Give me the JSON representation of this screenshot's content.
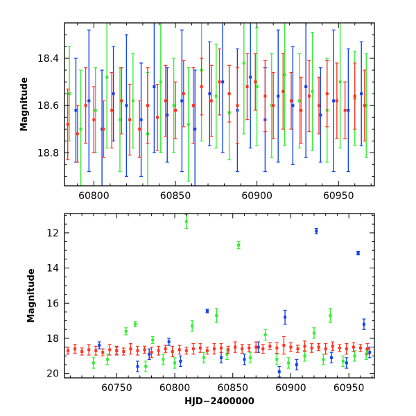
{
  "chart_data": [
    {
      "type": "scatter",
      "panel": "top",
      "title": "",
      "xlabel": "",
      "ylabel": "Magnitude",
      "xlim": [
        60782,
        60972
      ],
      "ylim": [
        18.25,
        18.94
      ],
      "y_inverted": true,
      "xticks": [
        60800,
        60850,
        60900,
        60950
      ],
      "yticks": [
        18.4,
        18.6,
        18.8
      ],
      "xtick_labels": [
        "60800",
        "60850",
        "60900",
        "60950"
      ],
      "ytick_labels": [
        "18.4",
        "18.6",
        "18.8"
      ],
      "series": [
        {
          "name": "green",
          "color": "#33ee33",
          "x": [
            60785,
            60792,
            60801,
            60808,
            60816,
            60824,
            60833,
            60841,
            60849,
            60858,
            60866,
            60875,
            60883,
            60892,
            60900,
            60909,
            60917,
            60926,
            60934,
            60943,
            60951,
            60960,
            60967
          ],
          "y": [
            18.55,
            18.7,
            18.62,
            18.48,
            18.66,
            18.58,
            18.72,
            18.5,
            18.6,
            18.68,
            18.45,
            18.56,
            18.63,
            18.42,
            18.52,
            18.6,
            18.47,
            18.58,
            18.54,
            18.62,
            18.5,
            18.57,
            18.6
          ],
          "err": [
            0.2,
            0.25,
            0.18,
            0.3,
            0.22,
            0.2,
            0.26,
            0.3,
            0.2,
            0.24,
            0.3,
            0.22,
            0.2,
            0.3,
            0.25,
            0.22,
            0.3,
            0.2,
            0.25,
            0.22,
            0.28,
            0.2,
            0.22
          ]
        },
        {
          "name": "blue",
          "color": "#1144ee",
          "x": [
            60789,
            60797,
            60805,
            60812,
            60820,
            60829,
            60837,
            60845,
            60854,
            60862,
            60871,
            60879,
            60888,
            60896,
            60905,
            60913,
            60922,
            60930,
            60939,
            60947,
            60956,
            60964
          ],
          "y": [
            18.62,
            18.58,
            18.7,
            18.55,
            18.6,
            18.66,
            18.52,
            18.64,
            18.58,
            18.7,
            18.55,
            18.5,
            18.62,
            18.48,
            18.66,
            18.56,
            18.6,
            18.52,
            18.64,
            18.58,
            18.62,
            18.55
          ],
          "err": [
            0.22,
            0.3,
            0.25,
            0.2,
            0.3,
            0.24,
            0.28,
            0.2,
            0.3,
            0.25,
            0.22,
            0.3,
            0.26,
            0.3,
            0.22,
            0.28,
            0.25,
            0.3,
            0.2,
            0.3,
            0.26,
            0.22
          ]
        },
        {
          "name": "red",
          "color": "#ff3322",
          "x": [
            60784,
            60790,
            60795,
            60800,
            60806,
            60811,
            60817,
            60822,
            60828,
            60833,
            60839,
            60844,
            60850,
            60855,
            60861,
            60866,
            60872,
            60877,
            60883,
            60888,
            60894,
            60899,
            60905,
            60910,
            60916,
            60921,
            60927,
            60932,
            60938,
            60943,
            60949,
            60954,
            60960,
            60966
          ],
          "y": [
            18.68,
            18.72,
            18.6,
            18.66,
            18.7,
            18.62,
            18.58,
            18.66,
            18.7,
            18.6,
            18.65,
            18.58,
            18.62,
            18.55,
            18.6,
            18.52,
            18.58,
            18.5,
            18.55,
            18.6,
            18.52,
            18.5,
            18.56,
            18.6,
            18.54,
            18.58,
            18.62,
            18.56,
            18.6,
            18.55,
            18.58,
            18.62,
            18.56,
            18.6
          ],
          "err": [
            0.15,
            0.12,
            0.16,
            0.14,
            0.12,
            0.16,
            0.14,
            0.15,
            0.12,
            0.16,
            0.14,
            0.15,
            0.12,
            0.14,
            0.16,
            0.12,
            0.15,
            0.14,
            0.12,
            0.16,
            0.14,
            0.12,
            0.15,
            0.14,
            0.16,
            0.12,
            0.14,
            0.15,
            0.12,
            0.14,
            0.16,
            0.12,
            0.14,
            0.15
          ]
        }
      ]
    },
    {
      "type": "scatter",
      "panel": "bottom",
      "title": "",
      "xlabel": "HJD−2400000",
      "ylabel": "Magnitude",
      "xlim": [
        60705,
        60972
      ],
      "ylim": [
        10.9,
        20.25
      ],
      "y_inverted": true,
      "xticks": [
        60750,
        60800,
        60850,
        60900,
        60950
      ],
      "yticks": [
        12,
        14,
        16,
        18,
        20
      ],
      "xtick_labels": [
        "60750",
        "60800",
        "60850",
        "60900",
        "60950"
      ],
      "ytick_labels": [
        "12",
        "14",
        "16",
        "18",
        "20"
      ],
      "series": [
        {
          "name": "green",
          "color": "#33ee33",
          "x": [
            60730,
            60742,
            60758,
            60766,
            60775,
            60781,
            60790,
            60800,
            60810,
            60815,
            60825,
            60836,
            60845,
            60855,
            60865,
            60878,
            60888,
            60898,
            60912,
            60920,
            60928,
            60934,
            60945,
            60955,
            60965
          ],
          "y": [
            19.4,
            19.2,
            17.6,
            17.2,
            19.6,
            18.1,
            19.2,
            19.4,
            11.35,
            17.3,
            19.1,
            16.7,
            18.9,
            12.7,
            19.1,
            17.8,
            19.2,
            19.4,
            19.0,
            17.7,
            19.2,
            16.7,
            19.3,
            19.0,
            18.9
          ],
          "err": [
            0.3,
            0.3,
            0.2,
            0.15,
            0.3,
            0.2,
            0.3,
            0.3,
            0.4,
            0.3,
            0.3,
            0.4,
            0.3,
            0.2,
            0.3,
            0.3,
            0.3,
            0.3,
            0.3,
            0.3,
            0.3,
            0.4,
            0.3,
            0.3,
            0.3
          ]
        },
        {
          "name": "blue",
          "color": "#1144ee",
          "x": [
            60735,
            60750,
            60768,
            60778,
            60795,
            60805,
            60828,
            60840,
            60860,
            60872,
            60890,
            60895,
            60905,
            60922,
            60935,
            60948,
            60958,
            60963,
            60968
          ],
          "y": [
            18.4,
            18.7,
            19.6,
            18.9,
            18.2,
            19.3,
            16.45,
            19.1,
            19.2,
            18.5,
            19.9,
            16.8,
            19.5,
            11.9,
            19.1,
            19.4,
            13.15,
            17.2,
            18.8
          ],
          "err": [
            0.2,
            0.2,
            0.3,
            0.3,
            0.2,
            0.3,
            0.1,
            0.3,
            0.3,
            0.3,
            0.3,
            0.4,
            0.3,
            0.15,
            0.3,
            0.3,
            0.1,
            0.3,
            0.3
          ]
        },
        {
          "name": "red",
          "color": "#ff3322",
          "x": [
            60708,
            60714,
            60720,
            60726,
            60732,
            60738,
            60744,
            60750,
            60756,
            60762,
            60768,
            60774,
            60780,
            60786,
            60792,
            60798,
            60804,
            60810,
            60816,
            60822,
            60828,
            60834,
            60840,
            60846,
            60852,
            60858,
            60864,
            60870,
            60876,
            60882,
            60888,
            60894,
            60900,
            60906,
            60912,
            60918,
            60924,
            60930,
            60936,
            60942,
            60948,
            60954,
            60960,
            60966
          ],
          "y": [
            18.7,
            18.6,
            18.75,
            18.65,
            18.7,
            18.8,
            18.65,
            18.7,
            18.75,
            18.6,
            18.7,
            18.65,
            18.8,
            18.7,
            18.6,
            18.75,
            18.65,
            18.7,
            18.6,
            18.55,
            18.7,
            18.6,
            18.55,
            18.65,
            18.5,
            18.6,
            18.55,
            18.5,
            18.6,
            18.45,
            18.55,
            18.4,
            18.5,
            18.6,
            18.45,
            18.55,
            18.5,
            18.6,
            18.45,
            18.55,
            18.6,
            18.5,
            18.55,
            18.6
          ],
          "err": [
            0.2,
            0.25,
            0.2,
            0.3,
            0.25,
            0.2,
            0.3,
            0.25,
            0.2,
            0.3,
            0.25,
            0.2,
            0.3,
            0.25,
            0.2,
            0.3,
            0.25,
            0.2,
            0.3,
            0.25,
            0.2,
            0.3,
            0.25,
            0.2,
            0.3,
            0.25,
            0.2,
            0.3,
            0.25,
            0.2,
            0.3,
            0.5,
            0.25,
            0.2,
            0.3,
            0.25,
            0.2,
            0.3,
            0.25,
            0.2,
            0.3,
            0.25,
            0.2,
            0.3
          ]
        }
      ]
    }
  ]
}
